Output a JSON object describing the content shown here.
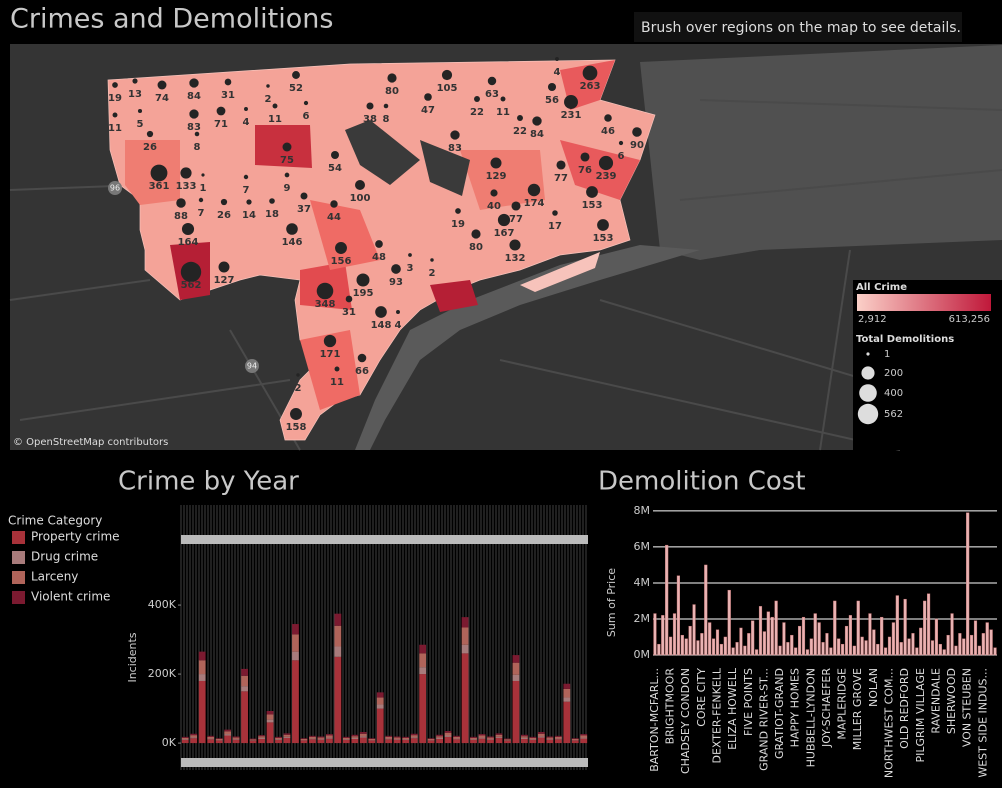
{
  "header": {
    "title": "Crimes and Demolitions",
    "instruction": "Brush over regions on the map to see details."
  },
  "map": {
    "labels": [
      19,
      13,
      74,
      84,
      31,
      2,
      52,
      80,
      105,
      63,
      4,
      263,
      11,
      5,
      83,
      71,
      4,
      11,
      6,
      38,
      8,
      47,
      22,
      11,
      56,
      231,
      22,
      84,
      46,
      90,
      26,
      8,
      75,
      83,
      6,
      76,
      239,
      77,
      361,
      133,
      1,
      7,
      9,
      54,
      129,
      153,
      174,
      40,
      100,
      37,
      44,
      88,
      7,
      26,
      14,
      18,
      19,
      77,
      167,
      17,
      153,
      164,
      146,
      80,
      132,
      156,
      48,
      93,
      3,
      2,
      127,
      562,
      348,
      195,
      31,
      148,
      4,
      171,
      66,
      2,
      11,
      158
    ],
    "shields": [
      "96",
      "94"
    ],
    "attribution": "© OpenStreetMap contributors",
    "legend": {
      "color_title": "All Crime",
      "color_min": {
        "value": 2912,
        "label": "2,912"
      },
      "color_max": {
        "value": 613256,
        "label": "613,256"
      },
      "size_title": "Total Demolitions",
      "sizes": [
        1,
        200,
        400,
        562
      ]
    }
  },
  "chart_data": [
    {
      "type": "bar",
      "stacked": true,
      "title": "Crime by Year",
      "legend_title": "Crime Category",
      "ylabel": "Incidents",
      "categories": [
        null,
        null,
        null,
        null,
        null,
        null,
        null,
        null,
        null,
        null,
        null,
        null,
        null,
        null,
        null,
        null,
        null,
        null,
        null,
        null,
        null,
        null,
        null,
        null,
        null,
        null,
        null,
        null,
        null,
        null,
        null,
        null,
        null,
        null,
        null,
        null,
        null,
        null,
        null,
        null,
        null,
        null,
        null,
        null,
        null,
        null,
        null,
        null
      ],
      "series": [
        {
          "name": "Property crime",
          "color": "#a8323a",
          "values": [
            9000,
            14000,
            180000,
            11000,
            8000,
            22000,
            10000,
            150000,
            7000,
            12000,
            60000,
            9000,
            15000,
            240000,
            8000,
            11000,
            10000,
            13000,
            250000,
            9000,
            12000,
            16000,
            8000,
            100000,
            11000,
            10000,
            9000,
            14000,
            200000,
            8000,
            12000,
            18000,
            11000,
            260000,
            9000,
            13000,
            10000,
            15000,
            7000,
            180000,
            12000,
            9000,
            16000,
            10000,
            11000,
            120000,
            8000,
            13000
          ]
        },
        {
          "name": "Drug crime",
          "color": "#a87b7b",
          "values": [
            2000,
            3000,
            20000,
            2000,
            1000,
            4000,
            2000,
            15000,
            1000,
            3000,
            8000,
            2000,
            3000,
            25000,
            1000,
            2000,
            2000,
            3000,
            30000,
            2000,
            3000,
            4000,
            1000,
            12000,
            2000,
            2000,
            2000,
            3000,
            20000,
            1000,
            3000,
            4000,
            2000,
            25000,
            2000,
            3000,
            2000,
            3000,
            1000,
            18000,
            3000,
            2000,
            4000,
            2000,
            2000,
            12000,
            1000,
            3000
          ]
        },
        {
          "name": "Larceny",
          "color": "#b0645a",
          "values": [
            4000,
            6000,
            40000,
            5000,
            3000,
            8000,
            4000,
            30000,
            3000,
            5000,
            15000,
            4000,
            6000,
            50000,
            3000,
            5000,
            4000,
            6000,
            60000,
            4000,
            5000,
            7000,
            3000,
            20000,
            5000,
            4000,
            4000,
            6000,
            40000,
            3000,
            5000,
            8000,
            5000,
            50000,
            4000,
            6000,
            4000,
            6000,
            3000,
            35000,
            5000,
            4000,
            7000,
            4000,
            5000,
            25000,
            3000,
            6000
          ]
        },
        {
          "name": "Violent crime",
          "color": "#7b1a30",
          "values": [
            3000,
            4000,
            25000,
            3000,
            2000,
            5000,
            3000,
            20000,
            2000,
            3000,
            10000,
            3000,
            4000,
            30000,
            2000,
            3000,
            3000,
            4000,
            35000,
            3000,
            4000,
            5000,
            2000,
            15000,
            3000,
            3000,
            3000,
            4000,
            25000,
            2000,
            4000,
            5000,
            3000,
            30000,
            3000,
            4000,
            3000,
            4000,
            2000,
            22000,
            4000,
            3000,
            5000,
            3000,
            3000,
            15000,
            2000,
            4000
          ]
        }
      ],
      "ylim": [
        -78000,
        690000
      ],
      "yticks": [
        {
          "value": 0,
          "label": "0K"
        },
        {
          "value": 200000,
          "label": "200K"
        },
        {
          "value": 400000,
          "label": "400K"
        }
      ],
      "grid": false
    },
    {
      "type": "bar",
      "title": "Demolition Cost",
      "ylabel": "Sum of Price",
      "color": "#e9b3b3",
      "categories": [
        "BARTON-MCFARL...",
        null,
        null,
        null,
        "BRIGHTMOOR",
        null,
        null,
        null,
        "CHADSEY CONDON",
        null,
        null,
        null,
        "CORE CITY",
        null,
        null,
        null,
        "DEXTER-FENKELL",
        null,
        null,
        null,
        "ELIZA HOWELL",
        null,
        null,
        null,
        "FIVE POINTS",
        null,
        null,
        null,
        "GRAND RIVER-ST...",
        null,
        null,
        null,
        "GRATIOT-GRAND",
        null,
        null,
        null,
        "HAPPY HOMES",
        null,
        null,
        null,
        "HUBBELL-LYNDON",
        null,
        null,
        null,
        "JOY-SCHAEFER",
        null,
        null,
        null,
        "MAPLERIDGE",
        null,
        null,
        null,
        "MILLER GROVE",
        null,
        null,
        null,
        "NOLAN",
        null,
        null,
        null,
        "NORTHWEST COM...",
        null,
        null,
        null,
        "OLD REDFORD",
        null,
        null,
        null,
        "PILGRIM VILLAGE",
        null,
        null,
        null,
        "RAVENDALE",
        null,
        null,
        null,
        "SHERWOOD",
        null,
        null,
        null,
        "VON STEUBEN",
        null,
        null,
        null,
        "WEST SIDE INDUS...",
        null,
        null,
        null
      ],
      "values": [
        2300000,
        600000,
        2200000,
        6100000,
        1000000,
        2300000,
        4400000,
        1100000,
        900000,
        1600000,
        2800000,
        800000,
        1200000,
        5000000,
        1800000,
        900000,
        1400000,
        600000,
        1000000,
        3600000,
        400000,
        700000,
        1500000,
        500000,
        1200000,
        1900000,
        300000,
        2700000,
        1300000,
        2400000,
        2100000,
        3000000,
        500000,
        1800000,
        700000,
        1100000,
        400000,
        1600000,
        2100000,
        300000,
        900000,
        2300000,
        1800000,
        700000,
        1200000,
        400000,
        3000000,
        900000,
        600000,
        1600000,
        2200000,
        500000,
        3000000,
        1000000,
        800000,
        2300000,
        1400000,
        600000,
        2100000,
        400000,
        1000000,
        1800000,
        3300000,
        700000,
        3100000,
        900000,
        1200000,
        400000,
        1500000,
        3000000,
        3400000,
        800000,
        2000000,
        600000,
        300000,
        1100000,
        2300000,
        500000,
        1200000,
        900000,
        7900000,
        1100000,
        1900000,
        500000,
        1200000,
        1800000,
        1400000,
        400000
      ],
      "ylim": [
        -390000,
        8440000
      ],
      "yticks": [
        {
          "value": 0,
          "label": "0M"
        },
        {
          "value": 2000000,
          "label": "2M"
        },
        {
          "value": 4000000,
          "label": "4M"
        },
        {
          "value": 6000000,
          "label": "6M"
        },
        {
          "value": 8000000,
          "label": "8M"
        }
      ],
      "grid": true
    }
  ]
}
